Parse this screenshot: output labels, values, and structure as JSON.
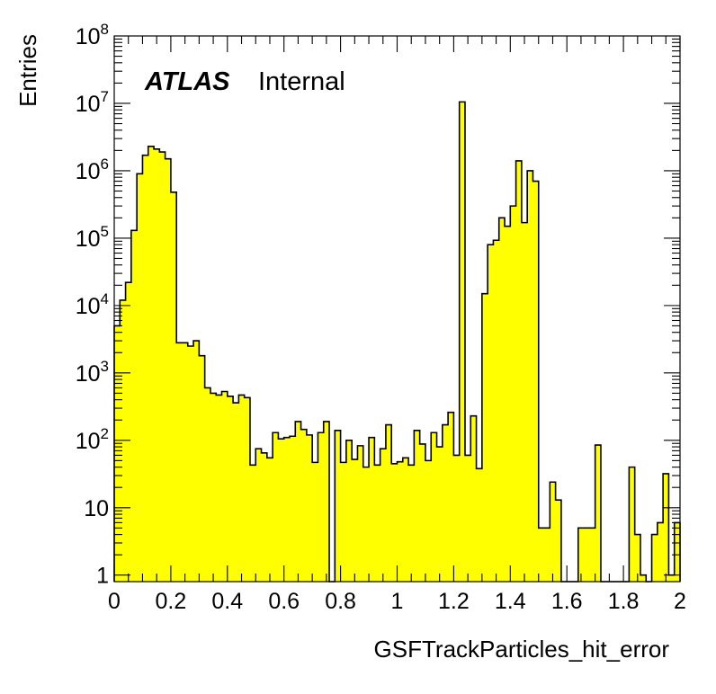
{
  "chart_data": {
    "type": "histogram",
    "xlabel": "GSFTrackParticles_hit_error",
    "ylabel": "Entries",
    "atlas_label": "ATLAS",
    "status_label": "Internal",
    "xlim": [
      0,
      2
    ],
    "ylim": [
      0.8,
      100000000
    ],
    "log_y": true,
    "fill_color": "#ffff00",
    "line_color": "#000000",
    "bin_width": 0.02,
    "x_ticks": [
      "0",
      "0.2",
      "0.4",
      "0.6",
      "0.8",
      "1",
      "1.2",
      "1.4",
      "1.6",
      "1.8",
      "2"
    ],
    "y_ticks": [
      {
        "value": 1,
        "base": "1",
        "exp": ""
      },
      {
        "value": 10,
        "base": "10",
        "exp": ""
      },
      {
        "value": 100,
        "base": "10",
        "exp": "2"
      },
      {
        "value": 1000,
        "base": "10",
        "exp": "3"
      },
      {
        "value": 10000,
        "base": "10",
        "exp": "4"
      },
      {
        "value": 100000,
        "base": "10",
        "exp": "5"
      },
      {
        "value": 1000000,
        "base": "10",
        "exp": "6"
      },
      {
        "value": 10000000,
        "base": "10",
        "exp": "7"
      },
      {
        "value": 100000000,
        "base": "10",
        "exp": "8"
      }
    ],
    "values": [
      5000,
      12000,
      22000,
      130000,
      900000,
      1700000,
      2300000,
      2100000,
      1900000,
      1500000,
      480000,
      2800,
      2800,
      2500,
      3000,
      1800,
      600,
      500,
      470,
      530,
      450,
      360,
      470,
      430,
      43,
      75,
      65,
      55,
      130,
      105,
      110,
      115,
      190,
      145,
      120,
      47,
      130,
      190,
      0,
      140,
      47,
      100,
      52,
      83,
      40,
      110,
      43,
      75,
      170,
      45,
      48,
      55,
      43,
      140,
      88,
      50,
      130,
      80,
      170,
      260,
      60,
      10500000,
      60,
      230,
      38,
      15000,
      80000,
      93000,
      200000,
      150000,
      300000,
      1400000,
      170000,
      1000000,
      700000,
      5,
      5,
      24,
      13,
      0,
      0,
      0,
      5,
      5,
      5,
      85,
      0,
      0,
      0,
      0,
      0,
      40,
      4,
      1,
      0,
      4,
      6,
      32,
      1,
      6
    ]
  }
}
